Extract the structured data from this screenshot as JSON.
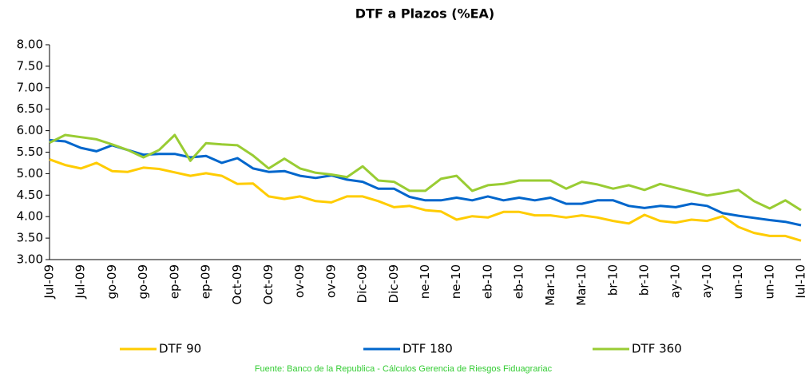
{
  "chart_data": {
    "type": "line",
    "title": "DTF a Plazos (%EA)",
    "categories": [
      "Jul-09",
      null,
      "Jul-09",
      null,
      "go-09",
      null,
      "go-09",
      null,
      "ep-09",
      null,
      "ep-09",
      null,
      "Oct-09",
      null,
      "Oct-09",
      null,
      "ov-09",
      null,
      "ov-09",
      null,
      "Dic-09",
      null,
      "Dic-09",
      null,
      "ne-10",
      null,
      "ne-10",
      null,
      "eb-10",
      null,
      "eb-10",
      null,
      "Mar-10",
      null,
      "Mar-10",
      null,
      "br-10",
      null,
      "br-10",
      null,
      "ay-10",
      null,
      "ay-10",
      null,
      "un-10",
      null,
      "un-10",
      null,
      "Jul-10"
    ],
    "series": [
      {
        "name": "DTF 90",
        "color": "#ffcc00",
        "values": [
          5.33,
          5.2,
          5.12,
          5.25,
          5.06,
          5.04,
          5.14,
          5.11,
          5.03,
          4.95,
          5.01,
          4.95,
          4.76,
          4.77,
          4.47,
          4.41,
          4.47,
          4.36,
          4.33,
          4.47,
          4.47,
          4.36,
          4.22,
          4.25,
          4.15,
          4.12,
          3.93,
          4.01,
          3.98,
          4.11,
          4.11,
          4.03,
          4.03,
          3.98,
          4.03,
          3.98,
          3.9,
          3.84,
          4.04,
          3.9,
          3.86,
          3.93,
          3.9,
          4.01,
          3.76,
          3.62,
          3.55,
          3.55,
          3.44
        ]
      },
      {
        "name": "DTF 180",
        "color": "#0066cc",
        "values": [
          5.78,
          5.75,
          5.6,
          5.52,
          5.66,
          5.55,
          5.44,
          5.46,
          5.46,
          5.38,
          5.41,
          5.25,
          5.36,
          5.12,
          5.04,
          5.06,
          4.95,
          4.9,
          4.96,
          4.86,
          4.81,
          4.65,
          4.65,
          4.46,
          4.38,
          4.38,
          4.44,
          4.38,
          4.47,
          4.38,
          4.44,
          4.38,
          4.44,
          4.3,
          4.3,
          4.38,
          4.38,
          4.25,
          4.2,
          4.25,
          4.22,
          4.3,
          4.25,
          4.08,
          4.02,
          3.97,
          3.92,
          3.88,
          3.8
        ]
      },
      {
        "name": "DTF 360",
        "color": "#99cc33",
        "values": [
          5.72,
          5.9,
          5.85,
          5.8,
          5.68,
          5.55,
          5.38,
          5.55,
          5.9,
          5.3,
          5.71,
          5.68,
          5.66,
          5.42,
          5.12,
          5.35,
          5.12,
          5.02,
          4.98,
          4.92,
          5.17,
          4.84,
          4.81,
          4.6,
          4.6,
          4.88,
          4.95,
          4.6,
          4.73,
          4.76,
          4.84,
          4.84,
          4.84,
          4.65,
          4.81,
          4.75,
          4.65,
          4.73,
          4.62,
          4.76,
          4.67,
          4.58,
          4.49,
          4.55,
          4.62,
          4.36,
          4.19,
          4.38,
          4.15
        ]
      }
    ],
    "ylim": [
      3,
      8
    ],
    "yticks": [
      {
        "value": 3,
        "label": "3.00"
      },
      {
        "value": 3.5,
        "label": "3.50"
      },
      {
        "value": 4,
        "label": "4.00"
      },
      {
        "value": 4.5,
        "label": "4.50"
      },
      {
        "value": 5,
        "label": "5.00"
      },
      {
        "value": 5.5,
        "label": "5.50"
      },
      {
        "value": 6,
        "label": "6.00"
      },
      {
        "value": 6.5,
        "label": "6.50"
      },
      {
        "value": 7,
        "label": "7.00"
      },
      {
        "value": 7.5,
        "label": "7.50"
      },
      {
        "value": 8,
        "label": "8.00"
      }
    ],
    "grid": false,
    "legend": "bottom",
    "source": "Fuente: Banco de la Republica - Cálculos Gerencia de Riesgos Fiduagrariac"
  }
}
